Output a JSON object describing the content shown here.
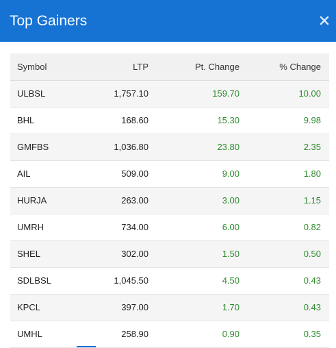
{
  "dialog": {
    "title": "Top Gainers",
    "close_icon": "close-icon"
  },
  "colors": {
    "header": "#1673d4",
    "positive": "#2e8b2e"
  },
  "table": {
    "columns": [
      "Symbol",
      "LTP",
      "Pt. Change",
      "% Change"
    ],
    "rows": [
      {
        "symbol": "ULBSL",
        "ltp": "1,757.10",
        "pt_change": "159.70",
        "pct_change": "10.00"
      },
      {
        "symbol": "BHL",
        "ltp": "168.60",
        "pt_change": "15.30",
        "pct_change": "9.98"
      },
      {
        "symbol": "GMFBS",
        "ltp": "1,036.80",
        "pt_change": "23.80",
        "pct_change": "2.35"
      },
      {
        "symbol": "AIL",
        "ltp": "509.00",
        "pt_change": "9.00",
        "pct_change": "1.80"
      },
      {
        "symbol": "HURJA",
        "ltp": "263.00",
        "pt_change": "3.00",
        "pct_change": "1.15"
      },
      {
        "symbol": "UMRH",
        "ltp": "734.00",
        "pt_change": "6.00",
        "pct_change": "0.82"
      },
      {
        "symbol": "SHEL",
        "ltp": "302.00",
        "pt_change": "1.50",
        "pct_change": "0.50"
      },
      {
        "symbol": "SDLBSL",
        "ltp": "1,045.50",
        "pt_change": "4.50",
        "pct_change": "0.43"
      },
      {
        "symbol": "KPCL",
        "ltp": "397.00",
        "pt_change": "1.70",
        "pct_change": "0.43"
      },
      {
        "symbol": "UMHL",
        "ltp": "258.90",
        "pt_change": "0.90",
        "pct_change": "0.35"
      }
    ]
  }
}
